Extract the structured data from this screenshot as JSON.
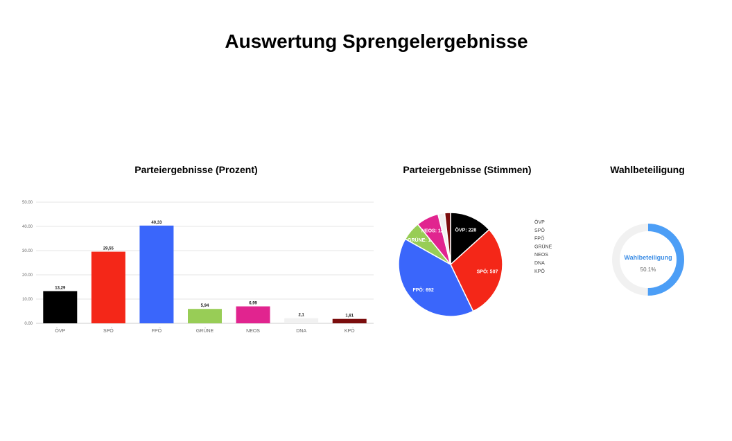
{
  "page": {
    "title": "Auswertung Sprengelergebnisse"
  },
  "chart_data": [
    {
      "type": "bar",
      "title": "Parteiergebnisse (Prozent)",
      "categories": [
        "ÖVP",
        "SPÖ",
        "FPÖ",
        "GRÜNE",
        "NEOS",
        "DNA",
        "KPÖ"
      ],
      "values": [
        13.29,
        29.55,
        40.33,
        5.94,
        6.99,
        2.1,
        1.81
      ],
      "value_labels": [
        "13,29",
        "29,55",
        "40,33",
        "5,94",
        "6,99",
        "2,1",
        "1,81"
      ],
      "colors": [
        "#000000",
        "#f42718",
        "#3a66fb",
        "#98cd56",
        "#e1248f",
        "#f1f1f1",
        "#7b0d0d"
      ],
      "yticks": [
        0,
        10,
        20,
        30,
        40,
        50
      ],
      "ytick_labels": [
        "0.00",
        "10.00",
        "20.00",
        "30.00",
        "40.00",
        "50.00"
      ],
      "ylim": [
        0,
        50
      ],
      "grid": true,
      "legend": false
    },
    {
      "type": "pie",
      "title": "Parteiergebnisse (Stimmen)",
      "categories": [
        "ÖVP",
        "SPÖ",
        "FPÖ",
        "GRÜNE",
        "NEOS",
        "DNA",
        "KPÖ"
      ],
      "values": [
        228,
        507,
        692,
        102,
        120,
        36,
        31
      ],
      "slice_labels": [
        "ÖVP: 228",
        "SPÖ: 507",
        "FPÖ: 692",
        "GRÜNE: 102",
        "NEOS: 120",
        "",
        ""
      ],
      "colors": [
        "#000000",
        "#f42718",
        "#3a66fb",
        "#98cd56",
        "#e1248f",
        "#f1f1f1",
        "#7b0d0d"
      ],
      "legend": "right"
    },
    {
      "type": "gauge",
      "title": "Wahlbeteiligung",
      "label": "Wahlbeteiligung",
      "value": 50.1,
      "value_label": "50.1%",
      "max": 100,
      "colors": {
        "fill": "#4c9ef6",
        "track": "#f1f1f1",
        "label": "#3f8fe6"
      }
    }
  ]
}
